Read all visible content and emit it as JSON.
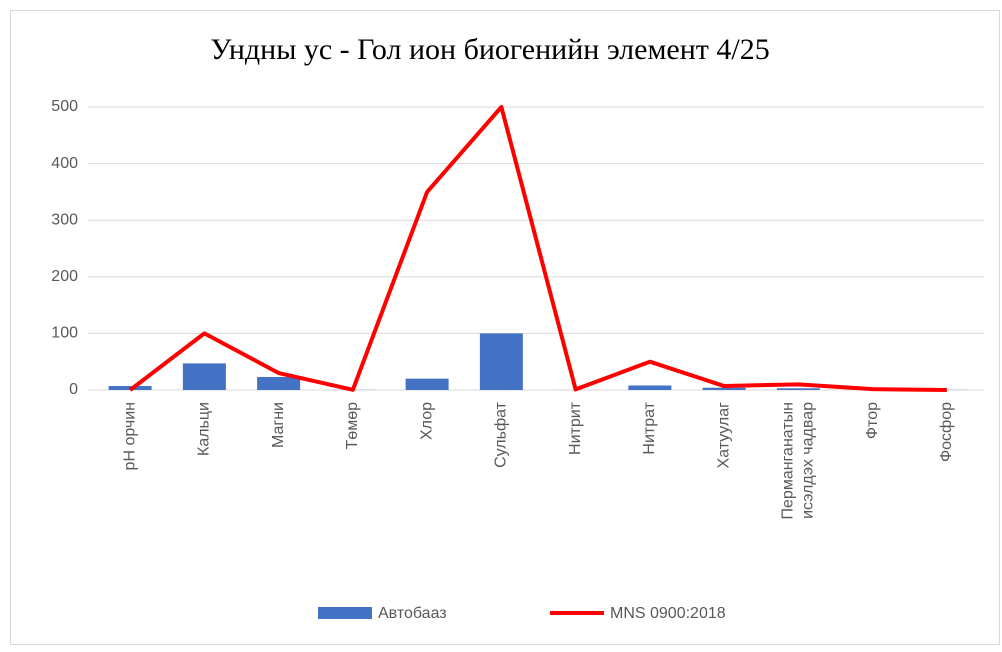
{
  "chart_data": {
    "type": "combo",
    "title": "Ундны ус - Гол ион биогенийн элемент 4/25",
    "categories": [
      "pH орчин",
      "Кальци",
      "Магни",
      "Төмөр",
      "Хлор",
      "Сульфат",
      "Нитрит",
      "Нитрат",
      "Хатуулаг",
      "Перманганатын исэлдэх чадвар",
      "Фтор",
      "Фосфор"
    ],
    "series": [
      {
        "name": "Автобааз",
        "type": "bar",
        "color": "#4472c4",
        "values": [
          7,
          47,
          23,
          0.3,
          20,
          100,
          0.1,
          8,
          4,
          3,
          0.5,
          0.2
        ]
      },
      {
        "name": "MNS 0900:2018",
        "type": "line",
        "color": "#ff0000",
        "values": [
          0,
          100,
          30,
          0.3,
          350,
          500,
          1,
          50,
          7,
          10,
          1.5,
          0.1
        ]
      }
    ],
    "ylim": [
      0,
      500
    ],
    "yticks": [
      0,
      100,
      200,
      300,
      400,
      500
    ],
    "grid": true,
    "legend": "bottom"
  }
}
